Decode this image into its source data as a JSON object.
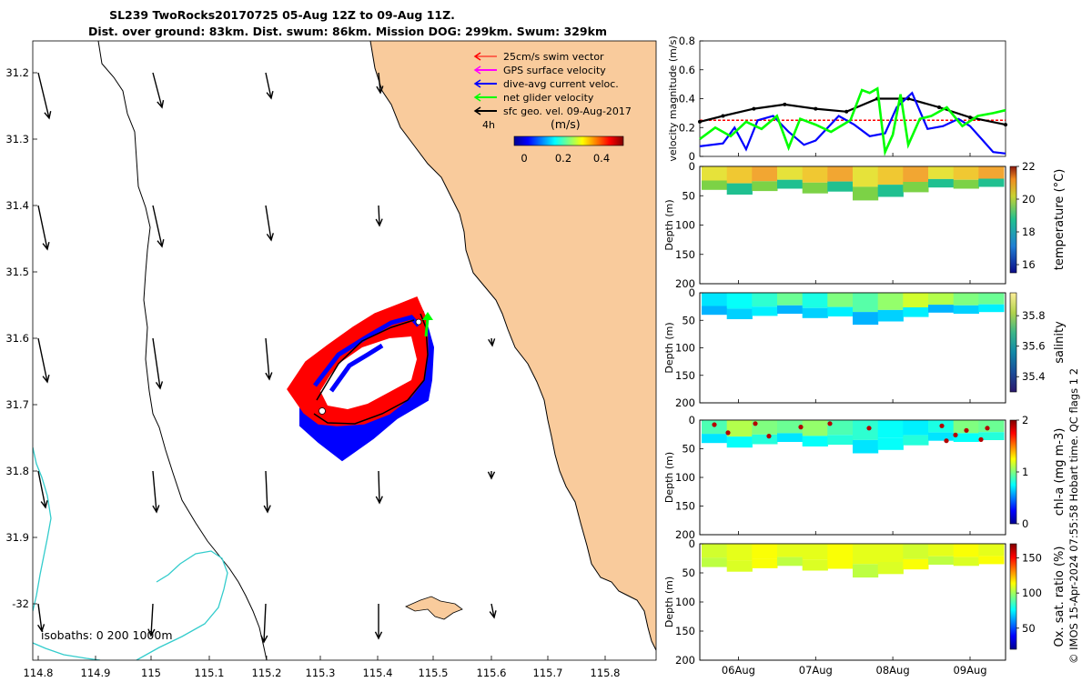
{
  "title": {
    "line1": "SL239 TwoRocks20170725 05-Aug 12Z to 09-Aug 11Z.",
    "line2": "Dist. over ground: 83km. Dist. swum: 86km. Mission DOG: 299km. Swum: 329km"
  },
  "map": {
    "lat_ticks": [
      "31.2",
      "31.3",
      "31.4",
      "31.5",
      "31.6",
      "31.7",
      "31.8",
      "31.9",
      "-32"
    ],
    "lon_ticks": [
      "114.8",
      "114.9",
      "115",
      "115.1",
      "115.2",
      "115.3",
      "115.4",
      "115.5",
      "115.6",
      "115.7",
      "115.8"
    ],
    "legend": [
      {
        "label": "25cm/s swim vector",
        "color": "#ff0000"
      },
      {
        "label": "GPS surface velocity",
        "color": "#ff00ff"
      },
      {
        "label": "dive-avg current veloc.",
        "color": "#0000ff"
      },
      {
        "label": "net glider velocity",
        "color": "#00ff00"
      },
      {
        "label": "sfc geo. vel. 09-Aug-2017",
        "color": "#000000"
      }
    ],
    "interval_label": "4h",
    "colorbar_title": "(m/s)",
    "colorbar_ticks": [
      "0",
      "0.2",
      "0.4"
    ],
    "isobaths_label": "isobaths: 0   200  1000m",
    "land_color": "#f9cb9c",
    "isobath_color": "#33cccc",
    "track_colors": {
      "swim": "#ff0000",
      "current": "#0000ff",
      "net": "#00ff00"
    }
  },
  "chart_data": [
    {
      "type": "line",
      "title": "",
      "xlabel": "",
      "ylabel": "velocity magnitude (m/s)",
      "ylim": [
        0,
        0.8
      ],
      "yticks": [
        "0",
        "0.2",
        "0.4",
        "0.6",
        "0.8"
      ],
      "x_unit": "day (Aug 2017)",
      "xlim": [
        5.5,
        9.46
      ],
      "series": [
        {
          "name": "swim speed",
          "color": "#ff0000",
          "x": [
            5.5,
            9.46
          ],
          "y": [
            0.25,
            0.25
          ]
        },
        {
          "name": "sfc geo. vel.",
          "color": "#000000",
          "x": [
            5.5,
            5.8,
            6.2,
            6.6,
            7.0,
            7.4,
            7.8,
            8.2,
            8.6,
            9.0,
            9.46
          ],
          "y": [
            0.24,
            0.28,
            0.33,
            0.36,
            0.33,
            0.31,
            0.4,
            0.4,
            0.34,
            0.27,
            0.22
          ]
        },
        {
          "name": "dive-avg current",
          "color": "#0000ff",
          "x": [
            5.5,
            5.8,
            5.95,
            6.1,
            6.25,
            6.45,
            6.65,
            6.85,
            7.0,
            7.3,
            7.5,
            7.7,
            7.9,
            8.05,
            8.25,
            8.45,
            8.65,
            8.85,
            9.0,
            9.15,
            9.3,
            9.46
          ],
          "y": [
            0.07,
            0.09,
            0.2,
            0.05,
            0.25,
            0.28,
            0.17,
            0.08,
            0.11,
            0.28,
            0.22,
            0.14,
            0.16,
            0.34,
            0.44,
            0.19,
            0.21,
            0.26,
            0.21,
            0.12,
            0.03,
            0.02
          ]
        },
        {
          "name": "net glider velocity",
          "color": "#00ff00",
          "x": [
            5.5,
            5.7,
            5.9,
            6.1,
            6.3,
            6.5,
            6.65,
            6.8,
            7.0,
            7.2,
            7.45,
            7.6,
            7.7,
            7.8,
            7.9,
            8.0,
            8.1,
            8.2,
            8.35,
            8.5,
            8.7,
            8.9,
            9.1,
            9.3,
            9.46
          ],
          "y": [
            0.12,
            0.2,
            0.14,
            0.24,
            0.19,
            0.28,
            0.06,
            0.26,
            0.22,
            0.17,
            0.25,
            0.46,
            0.44,
            0.47,
            0.03,
            0.15,
            0.43,
            0.08,
            0.26,
            0.28,
            0.34,
            0.21,
            0.28,
            0.3,
            0.32
          ]
        }
      ]
    },
    {
      "type": "heatmap",
      "ylabel": "Depth (m)",
      "ylim": [
        200,
        0
      ],
      "yticks": [
        "0",
        "50",
        "100",
        "150",
        "200"
      ],
      "colorbar_label": "temperature (°C)",
      "colorbar_ticks": [
        "16",
        "18",
        "20",
        "22"
      ],
      "color_range": [
        15.5,
        22
      ]
    },
    {
      "type": "heatmap",
      "ylabel": "Depth (m)",
      "ylim": [
        200,
        0
      ],
      "yticks": [
        "0",
        "50",
        "100",
        "150",
        "200"
      ],
      "colorbar_label": "salinity",
      "colorbar_ticks": [
        "35.4",
        "35.6",
        "35.8"
      ],
      "color_range": [
        35.3,
        35.95
      ]
    },
    {
      "type": "heatmap",
      "ylabel": "Depth (m)",
      "ylim": [
        200,
        0
      ],
      "yticks": [
        "0",
        "50",
        "100",
        "150",
        "200"
      ],
      "colorbar_label": "chl-a (mg m-3)",
      "colorbar_ticks": [
        "0",
        "1",
        "2"
      ],
      "color_range": [
        0,
        2
      ]
    },
    {
      "type": "heatmap",
      "ylabel": "Depth (m)",
      "ylim": [
        200,
        0
      ],
      "yticks": [
        "0",
        "50",
        "100",
        "150",
        "200"
      ],
      "xticks": [
        "06Aug",
        "07Aug",
        "08Aug",
        "09Aug"
      ],
      "colorbar_label": "Ox. sat. ratio (%)",
      "colorbar_ticks": [
        "50",
        "100",
        "150"
      ],
      "color_range": [
        20,
        170
      ]
    }
  ],
  "side_caption": "© IMOS 15-Apr-2024 07:55:58 Hobart time. QC flags 1  2"
}
